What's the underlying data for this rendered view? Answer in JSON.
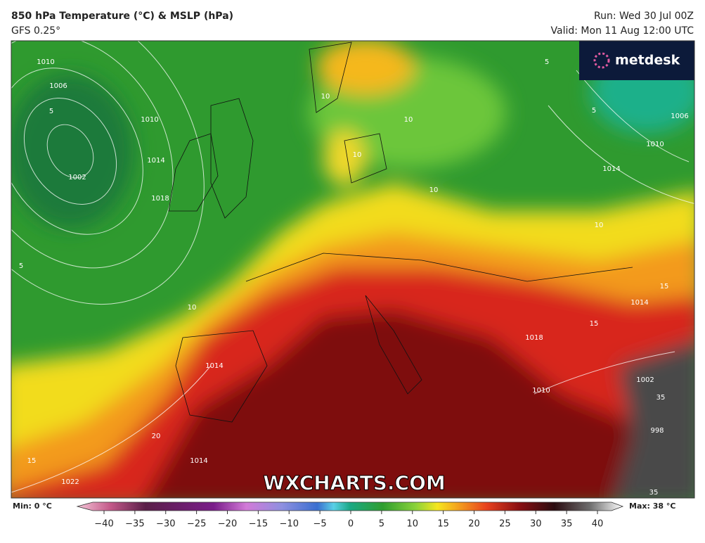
{
  "header": {
    "title": "850 hPa Temperature (°C) & MSLP (hPa)",
    "model": "GFS 0.25°",
    "run": "Run: Wed 30 Jul 00Z",
    "valid": "Valid: Mon 11 Aug 12:00 UTC"
  },
  "logo": "metdesk",
  "watermark": "WXCHARTS.COM",
  "colorbar": {
    "min_label": "Min: 0 °C",
    "max_label": "Max: 38 °C",
    "range": [
      -40,
      40
    ],
    "ticks": [
      {
        "value": -40,
        "label": "−40"
      },
      {
        "value": -35,
        "label": "−35"
      },
      {
        "value": -30,
        "label": "−30"
      },
      {
        "value": -25,
        "label": "−25"
      },
      {
        "value": -20,
        "label": "−20"
      },
      {
        "value": -15,
        "label": "−15"
      },
      {
        "value": -10,
        "label": "−10"
      },
      {
        "value": -5,
        "label": "−5"
      },
      0,
      5,
      10,
      15,
      20,
      25,
      30,
      35,
      40
    ]
  },
  "map_labels": [
    "1010",
    "1006",
    "5",
    "1002",
    "1010",
    "1014",
    "1018",
    "5",
    "10",
    "10",
    "10",
    "10",
    "10",
    "10",
    "5",
    "5",
    "1006",
    "1010",
    "1014",
    "15",
    "1014",
    "1018",
    "15",
    "1014",
    "1010",
    "1002",
    "20",
    "15",
    "1022",
    "1014",
    "998",
    "35",
    "35"
  ]
}
